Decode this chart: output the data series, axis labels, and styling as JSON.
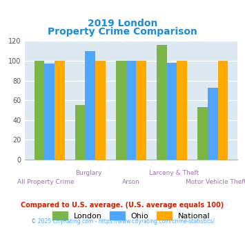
{
  "title_line1": "2019 London",
  "title_line2": "Property Crime Comparison",
  "title_color": "#1a8cd8",
  "categories": [
    "All Property Crime",
    "Burglary",
    "Arson",
    "Larceny & Theft",
    "Motor Vehicle Theft"
  ],
  "x_labels_top": [
    "",
    "Burglary",
    "",
    "Larceny & Theft",
    ""
  ],
  "x_labels_bottom": [
    "All Property Crime",
    "",
    "Arson",
    "",
    "Motor Vehicle Theft"
  ],
  "london_values": [
    100,
    55,
    100,
    116,
    53
  ],
  "ohio_values": [
    97,
    110,
    100,
    98,
    73
  ],
  "national_values": [
    100,
    100,
    100,
    100,
    100
  ],
  "london_color": "#7ab648",
  "ohio_color": "#4da6ff",
  "national_color": "#ffaa00",
  "ylim": [
    0,
    120
  ],
  "yticks": [
    0,
    20,
    40,
    60,
    80,
    100,
    120
  ],
  "legend_labels": [
    "London",
    "Ohio",
    "National"
  ],
  "footnote1": "Compared to U.S. average. (U.S. average equals 100)",
  "footnote2": "© 2025 CityRating.com - https://www.cityrating.com/crime-statistics/",
  "footnote1_color": "#cc2200",
  "footnote2_color": "#4da6ff",
  "label_color": "#9b72aa",
  "bg_color": "#dce9f0",
  "bar_width": 0.25,
  "grid_color": "#ffffff"
}
